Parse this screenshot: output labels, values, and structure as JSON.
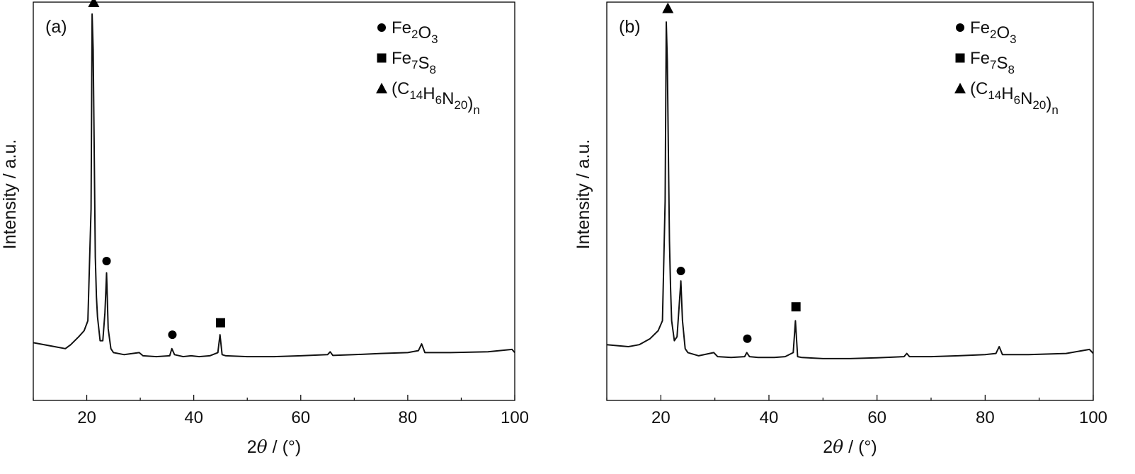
{
  "chart_data": [
    {
      "type": "line",
      "panel_label": "(a)",
      "xlabel": "2θ / (°)",
      "ylabel": "Intensity / a.u.",
      "xlim": [
        10,
        100
      ],
      "ylim": [
        0,
        1
      ],
      "x_ticks": [
        20,
        40,
        60,
        80,
        100
      ],
      "y_ticks_labeled": false,
      "grid": false,
      "legend_position": "top-right",
      "legend": [
        {
          "marker": "circle",
          "label": "Fe2O3",
          "text": "Fe",
          "sub1": "2",
          "mid": "O",
          "sub2": "3",
          "tail": ""
        },
        {
          "marker": "square",
          "label": "Fe7S8",
          "text": "Fe",
          "sub1": "7",
          "mid": "S",
          "sub2": "8",
          "tail": ""
        },
        {
          "marker": "triangle",
          "label": "(C14H6N20)n",
          "text": "(C",
          "sub1": "14",
          "mid": "H",
          "sub2": "6",
          "tail": "N",
          "sub3": "20",
          "close": ")",
          "sub4": "n"
        }
      ],
      "series": [
        {
          "x": [
            10,
            14,
            16,
            17,
            18.5,
            19.5,
            20.2,
            20.8,
            21.0,
            21.2,
            21.4,
            21.6,
            21.8,
            22.0,
            22.5,
            23.0,
            23.4,
            23.7,
            24.0,
            24.5,
            25,
            27,
            29.8,
            30.5,
            33,
            35.5,
            35.9,
            36.4,
            38,
            39.5,
            41,
            43,
            44.5,
            44.9,
            45.3,
            46,
            50,
            55,
            60,
            65,
            65.5,
            66,
            70,
            75,
            80,
            82.0,
            82.6,
            83.2,
            88,
            95,
            99.5,
            100
          ],
          "y": [
            0.145,
            0.135,
            0.13,
            0.14,
            0.16,
            0.175,
            0.2,
            0.48,
            0.97,
            0.88,
            0.62,
            0.36,
            0.26,
            0.21,
            0.15,
            0.15,
            0.22,
            0.32,
            0.18,
            0.13,
            0.12,
            0.115,
            0.12,
            0.112,
            0.11,
            0.112,
            0.13,
            0.115,
            0.11,
            0.112,
            0.11,
            0.112,
            0.12,
            0.165,
            0.115,
            0.112,
            0.11,
            0.11,
            0.112,
            0.115,
            0.122,
            0.113,
            0.115,
            0.118,
            0.12,
            0.125,
            0.142,
            0.12,
            0.12,
            0.122,
            0.128,
            0.12
          ]
        }
      ],
      "markers": [
        {
          "symbol": "triangle",
          "x": 21.3,
          "y": 1.0,
          "phase": "(C14H6N20)n"
        },
        {
          "symbol": "circle",
          "x": 23.7,
          "y": 0.35,
          "phase": "Fe2O3"
        },
        {
          "symbol": "circle",
          "x": 36.0,
          "y": 0.165,
          "phase": "Fe2O3"
        },
        {
          "symbol": "square",
          "x": 45.0,
          "y": 0.195,
          "phase": "Fe7S8"
        }
      ]
    },
    {
      "type": "line",
      "panel_label": "(b)",
      "xlabel": "2θ / (°)",
      "ylabel": "Intensity / a.u.",
      "xlim": [
        10,
        100
      ],
      "ylim": [
        0,
        1
      ],
      "x_ticks": [
        20,
        40,
        60,
        80,
        100
      ],
      "y_ticks_labeled": false,
      "grid": false,
      "legend_position": "top-right",
      "legend": [
        {
          "marker": "circle",
          "label": "Fe2O3",
          "text": "Fe",
          "sub1": "2",
          "mid": "O",
          "sub2": "3",
          "tail": ""
        },
        {
          "marker": "square",
          "label": "Fe7S8",
          "text": "Fe",
          "sub1": "7",
          "mid": "S",
          "sub2": "8",
          "tail": ""
        },
        {
          "marker": "triangle",
          "label": "(C14H6N20)n",
          "text": "(C",
          "sub1": "14",
          "mid": "H",
          "sub2": "6",
          "tail": "N",
          "sub3": "20",
          "close": ")",
          "sub4": "n"
        }
      ],
      "series": [
        {
          "x": [
            10,
            14,
            16,
            18,
            19.5,
            20.3,
            20.8,
            21.0,
            21.2,
            21.4,
            21.6,
            21.8,
            22.0,
            22.5,
            23.0,
            23.4,
            23.7,
            24.0,
            24.5,
            25,
            27,
            29.8,
            30.5,
            33,
            35.5,
            35.9,
            36.4,
            38,
            41,
            43,
            44.5,
            44.9,
            45.3,
            46,
            50,
            55,
            60,
            65,
            65.5,
            66,
            70,
            75,
            80,
            82.0,
            82.6,
            83.2,
            88,
            95,
            99.3,
            100
          ],
          "y": [
            0.14,
            0.135,
            0.14,
            0.155,
            0.175,
            0.2,
            0.5,
            0.95,
            0.85,
            0.62,
            0.4,
            0.28,
            0.2,
            0.15,
            0.16,
            0.24,
            0.3,
            0.2,
            0.13,
            0.12,
            0.112,
            0.12,
            0.11,
            0.108,
            0.11,
            0.12,
            0.11,
            0.108,
            0.108,
            0.11,
            0.12,
            0.2,
            0.11,
            0.108,
            0.105,
            0.105,
            0.107,
            0.11,
            0.118,
            0.11,
            0.11,
            0.112,
            0.115,
            0.118,
            0.135,
            0.115,
            0.115,
            0.118,
            0.128,
            0.118
          ]
        }
      ],
      "markers": [
        {
          "symbol": "triangle",
          "x": 21.3,
          "y": 0.985,
          "phase": "(C14H6N20)n"
        },
        {
          "symbol": "circle",
          "x": 23.7,
          "y": 0.325,
          "phase": "Fe2O3"
        },
        {
          "symbol": "circle",
          "x": 36.0,
          "y": 0.155,
          "phase": "Fe2O3"
        },
        {
          "symbol": "square",
          "x": 45.0,
          "y": 0.235,
          "phase": "Fe7S8"
        }
      ]
    }
  ]
}
